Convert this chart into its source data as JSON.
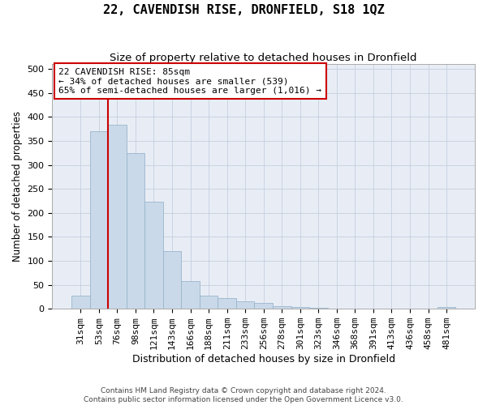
{
  "title": "22, CAVENDISH RISE, DRONFIELD, S18 1QZ",
  "subtitle": "Size of property relative to detached houses in Dronfield",
  "xlabel": "Distribution of detached houses by size in Dronfield",
  "ylabel": "Number of detached properties",
  "footer_line1": "Contains HM Land Registry data © Crown copyright and database right 2024.",
  "footer_line2": "Contains public sector information licensed under the Open Government Licence v3.0.",
  "bar_labels": [
    "31sqm",
    "53sqm",
    "76sqm",
    "98sqm",
    "121sqm",
    "143sqm",
    "166sqm",
    "188sqm",
    "211sqm",
    "233sqm",
    "256sqm",
    "278sqm",
    "301sqm",
    "323sqm",
    "346sqm",
    "368sqm",
    "391sqm",
    "413sqm",
    "436sqm",
    "458sqm",
    "481sqm"
  ],
  "bar_values": [
    27,
    370,
    383,
    325,
    223,
    120,
    57,
    27,
    22,
    15,
    12,
    6,
    4,
    2,
    1,
    1,
    0,
    0,
    0,
    1,
    4
  ],
  "bar_color": "#c9d9e9",
  "bar_edge_color": "#9ab5cc",
  "grid_color": "#c5cfe0",
  "background_color": "#e8edf5",
  "vline_position": 1.5,
  "vline_color": "#cc0000",
  "annotation_text": "22 CAVENDISH RISE: 85sqm\n← 34% of detached houses are smaller (539)\n65% of semi-detached houses are larger (1,016) →",
  "annotation_box_facecolor": "#ffffff",
  "annotation_box_edgecolor": "#cc0000",
  "annotation_fontsize": 8.0,
  "ylim": [
    0,
    510
  ],
  "yticks": [
    0,
    50,
    100,
    150,
    200,
    250,
    300,
    350,
    400,
    450,
    500
  ],
  "title_fontsize": 11,
  "subtitle_fontsize": 9.5,
  "xlabel_fontsize": 9,
  "ylabel_fontsize": 8.5,
  "tick_fontsize": 8,
  "footer_fontsize": 6.5
}
